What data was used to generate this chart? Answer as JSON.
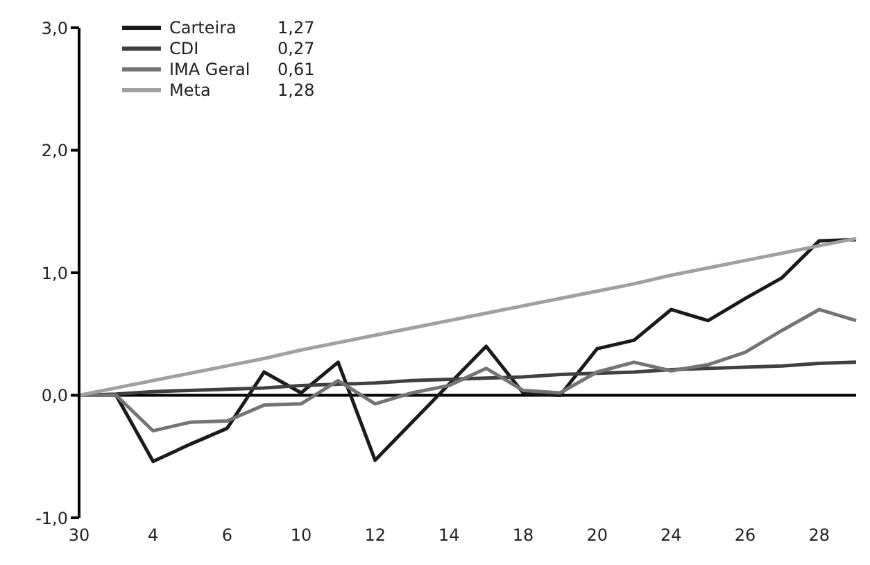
{
  "chart_data": {
    "type": "line",
    "categories": [
      "30",
      null,
      "4",
      null,
      "6",
      null,
      "10",
      null,
      "12",
      null,
      "14",
      null,
      "18",
      null,
      "20",
      null,
      "24",
      null,
      "26",
      null,
      "28",
      null
    ],
    "series": [
      {
        "name": "Carteira",
        "color": "#1a1a1a",
        "values": [
          0,
          0,
          -0.54,
          -0.4,
          -0.27,
          0.19,
          0.02,
          0.27,
          -0.53,
          -0.22,
          0.09,
          0.4,
          0.02,
          0,
          0.38,
          0.45,
          0.7,
          0.61,
          0.79,
          0.96,
          1.26,
          1.27
        ]
      },
      {
        "name": "CDI",
        "color": "#404040",
        "values": [
          0,
          0.01,
          0.03,
          0.04,
          0.05,
          0.06,
          0.08,
          0.09,
          0.1,
          0.12,
          0.13,
          0.14,
          0.15,
          0.17,
          0.18,
          0.19,
          0.21,
          0.22,
          0.23,
          0.24,
          0.26,
          0.27
        ]
      },
      {
        "name": "IMA Geral",
        "color": "#747474",
        "values": [
          0,
          0,
          -0.29,
          -0.22,
          -0.21,
          -0.08,
          -0.07,
          0.12,
          -0.07,
          0.02,
          0.08,
          0.22,
          0.04,
          0.02,
          0.19,
          0.27,
          0.2,
          0.25,
          0.35,
          0.53,
          0.7,
          0.61
        ]
      },
      {
        "name": "Meta",
        "color": "#a0a0a0",
        "values": [
          0,
          0.06,
          0.12,
          0.18,
          0.24,
          0.3,
          0.37,
          0.43,
          0.49,
          0.55,
          0.61,
          0.67,
          0.73,
          0.79,
          0.85,
          0.91,
          0.98,
          1.04,
          1.1,
          1.16,
          1.22,
          1.28
        ]
      }
    ],
    "annotations": [
      "1,27",
      "0,27",
      "0,61",
      "1,28"
    ],
    "ylim": [
      -1,
      3
    ],
    "yticks": [
      {
        "value": -1,
        "label": "-1,0"
      },
      {
        "value": 0,
        "label": "0,0"
      },
      {
        "value": 1,
        "label": "1,0"
      },
      {
        "value": 2,
        "label": "2,0"
      },
      {
        "value": 3,
        "label": "3,0"
      }
    ],
    "ref_lines": [
      {
        "axis": "y",
        "value": 0,
        "color": "#000000"
      }
    ],
    "grid": false,
    "legend": "top left",
    "marker": "none",
    "line_style": "solid"
  }
}
